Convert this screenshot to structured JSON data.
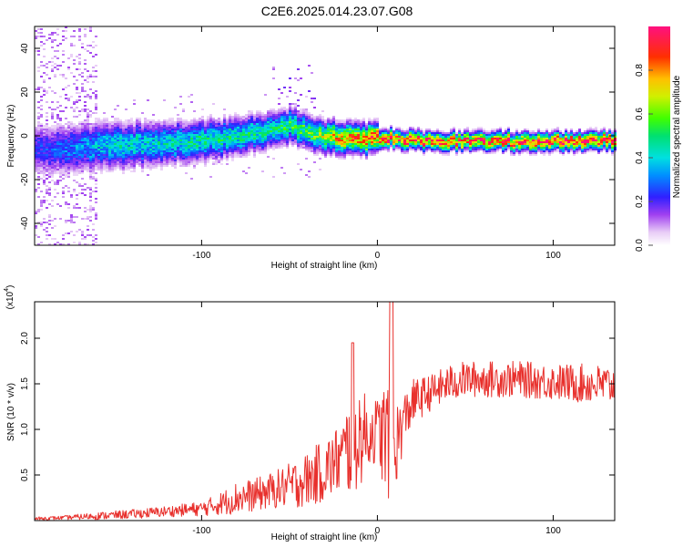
{
  "title": "C2E6.2025.014.23.07.G08",
  "chart_data": [
    {
      "type": "heatmap",
      "name": "spectrogram",
      "xlabel": "Height of straight line (km)",
      "ylabel": "Frequency (Hz)",
      "xlim": [
        -195,
        135
      ],
      "ylim": [
        -50,
        50
      ],
      "xticks": [
        -100,
        0,
        100
      ],
      "yticks": [
        -40,
        -20,
        0,
        20,
        40
      ],
      "colorbar": {
        "label": "Normalized spectral amplitude",
        "range": [
          0.0,
          1.0
        ],
        "ticks": [
          "0.0",
          "0.2",
          "0.4",
          "0.6",
          "0.8"
        ],
        "tick_values": [
          0.0,
          0.2,
          0.4,
          0.6,
          0.8
        ]
      },
      "ridge": {
        "description_points_x": [
          -195,
          -170,
          -150,
          -120,
          -100,
          -80,
          -60,
          -50,
          -40,
          -30,
          -20,
          -10,
          0,
          10,
          30,
          60,
          100,
          135
        ],
        "center_hz": [
          -6,
          -5,
          -4,
          -3,
          -2,
          0,
          3,
          5,
          2,
          0,
          -1,
          -1,
          -1,
          -1,
          -2,
          -2,
          -2,
          -2
        ],
        "peak_amplitude": [
          0.25,
          0.35,
          0.45,
          0.45,
          0.5,
          0.5,
          0.5,
          0.55,
          0.6,
          0.7,
          0.85,
          0.9,
          0.95,
          0.95,
          0.95,
          0.95,
          0.98,
          1.0
        ]
      }
    },
    {
      "type": "line",
      "name": "snr",
      "xlabel": "Height of straight line (km)",
      "ylabel": "SNR (10 * v/v)",
      "scale_label": "(x10",
      "scale_exp": "4",
      "scale_close": ")",
      "xlim": [
        -195,
        135
      ],
      "ylim": [
        0.0,
        2.4
      ],
      "xticks": [
        -100,
        0,
        100
      ],
      "yticks": [
        "0.5",
        "1.0",
        "1.5",
        "2.0"
      ],
      "ytick_values": [
        0.5,
        1.0,
        1.5,
        2.0
      ],
      "color": "#e8302c",
      "x": [
        -195,
        -180,
        -160,
        -140,
        -120,
        -100,
        -90,
        -80,
        -70,
        -60,
        -50,
        -40,
        -30,
        -20,
        -15,
        -10,
        -5,
        0,
        5,
        10,
        15,
        20,
        30,
        40,
        50,
        60,
        80,
        100,
        120,
        135
      ],
      "mean": [
        0.02,
        0.03,
        0.05,
        0.07,
        0.1,
        0.13,
        0.18,
        0.25,
        0.28,
        0.33,
        0.38,
        0.45,
        0.55,
        0.7,
        0.85,
        0.92,
        0.95,
        1.0,
        0.9,
        0.8,
        1.1,
        1.3,
        1.4,
        1.5,
        1.55,
        1.55,
        1.55,
        1.52,
        1.5,
        1.48
      ],
      "spread": [
        0.02,
        0.02,
        0.04,
        0.05,
        0.06,
        0.08,
        0.12,
        0.18,
        0.18,
        0.2,
        0.25,
        0.3,
        0.35,
        0.4,
        0.6,
        0.55,
        0.4,
        0.35,
        0.7,
        0.5,
        0.3,
        0.25,
        0.2,
        0.2,
        0.2,
        0.2,
        0.2,
        0.2,
        0.22,
        0.22
      ]
    }
  ]
}
